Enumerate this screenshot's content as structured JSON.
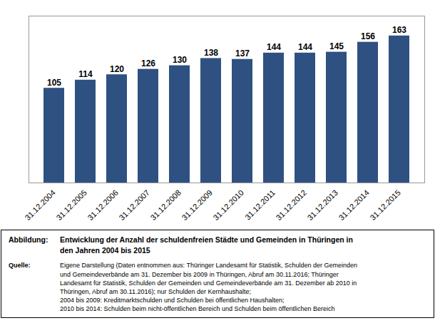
{
  "chart_data": {
    "type": "bar",
    "categories": [
      "31.12.2004",
      "31.12.2005",
      "31.12.2006",
      "31.12.2007",
      "31.12.2008",
      "31.12.2009",
      "31.12.2010",
      "31.12.2011",
      "31.12.2012",
      "31.12.2013",
      "31.12.2014",
      "31.12.2015"
    ],
    "values": [
      105,
      114,
      120,
      126,
      130,
      138,
      137,
      144,
      144,
      145,
      156,
      163
    ],
    "color": "#2E5181",
    "ylim": [
      0,
      185
    ],
    "grid": false,
    "data_labels": true,
    "tick_labels": "x",
    "annotations": [
      {
        "label": "Abbildung:",
        "lines": [
          "Entwicklung der Anzahl der schuldenfreien Städte und Gemeinden in Thüringen in",
          "den Jahren 2004 bis 2015"
        ]
      },
      {
        "label": "Quelle:",
        "lines": [
          "Eigene Darstellung (Daten entnommen aus: Thüringer Landesamt für Statistik, Schulden der Gemeinden",
          "und Gemeindeverbände am 31. Dezember bis 2009 in Thüringen, Abruf am 30.11.2016;  Thüringer",
          "Landesamt für Statistik, Schulden der Gemeinden und Gemeindeverbände am 31. Dezember ab 2010 in",
          "Thüringen, Abruf am 30.11.2016);  nur Schulden der Kernhaushalte;",
          "2004 bis 2009: Kreditmarktschulden und Schulden bei öffentlichen Haushalten;",
          "2010 bis 2014: Schulden beim nicht-öffentlichen Bereich und Schulden beim öffentlichen Bereich"
        ]
      }
    ]
  }
}
